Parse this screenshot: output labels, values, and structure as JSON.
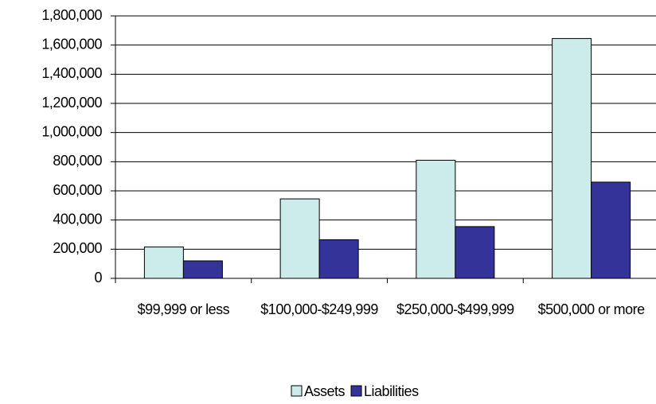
{
  "chart_data": {
    "type": "bar",
    "categories": [
      "$99,999 or less",
      "$100,000-$249,999",
      "$250,000-$499,999",
      "$500,000 or more"
    ],
    "series": [
      {
        "name": "Assets",
        "color": "#ccecec",
        "values": [
          215000,
          545000,
          810000,
          1645000
        ]
      },
      {
        "name": "Liabilities",
        "color": "#333399",
        "values": [
          120000,
          265000,
          355000,
          660000
        ]
      }
    ],
    "ylim": [
      0,
      1800000
    ],
    "yticks": [
      0,
      {
        "value": 200000,
        "label": "200,000"
      },
      {
        "value": 400000,
        "label": "400,000"
      },
      {
        "value": 600000,
        "label": "600,000"
      },
      {
        "value": 800000,
        "label": "800,000"
      },
      {
        "value": 1000000,
        "label": "1,000,000"
      },
      {
        "value": 1200000,
        "label": "1,200,000"
      },
      {
        "value": 1400000,
        "label": "1,400,000"
      },
      {
        "value": 1600000,
        "label": "1,600,000"
      },
      {
        "value": 1800000,
        "label": "1,800,000"
      }
    ],
    "grid": true,
    "legend": "bottom"
  }
}
